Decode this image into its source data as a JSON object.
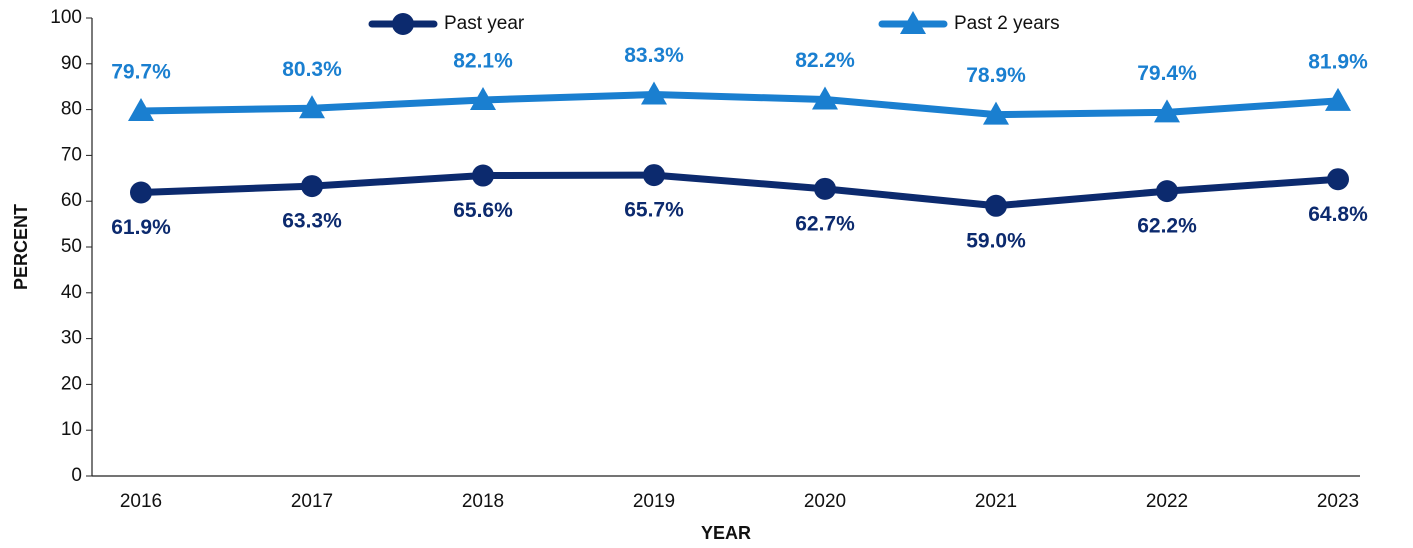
{
  "chart_data": {
    "type": "line",
    "x_label": "YEAR",
    "y_label": "PERCENT",
    "categories": [
      "2016",
      "2017",
      "2018",
      "2019",
      "2020",
      "2021",
      "2022",
      "2023"
    ],
    "series": [
      {
        "name": "Past year",
        "color": "#0c2a6e",
        "marker": "circle",
        "values": [
          61.9,
          63.3,
          65.6,
          65.7,
          62.7,
          59.0,
          62.2,
          64.8
        ],
        "value_labels": [
          "61.9%",
          "63.3%",
          "65.6%",
          "65.7%",
          "62.7%",
          "59.0%",
          "62.2%",
          "64.8%"
        ]
      },
      {
        "name": "Past 2 years",
        "color": "#1a7fd0",
        "marker": "triangle",
        "values": [
          79.7,
          80.3,
          82.1,
          83.3,
          82.2,
          78.9,
          79.4,
          81.9
        ],
        "value_labels": [
          "79.7%",
          "80.3%",
          "82.1%",
          "83.3%",
          "82.2%",
          "78.9%",
          "79.4%",
          "81.9%"
        ]
      }
    ],
    "ylim": [
      0,
      100
    ],
    "yticks": [
      0,
      10,
      20,
      30,
      40,
      50,
      60,
      70,
      80,
      90,
      100
    ],
    "grid": false,
    "legend": "top"
  }
}
